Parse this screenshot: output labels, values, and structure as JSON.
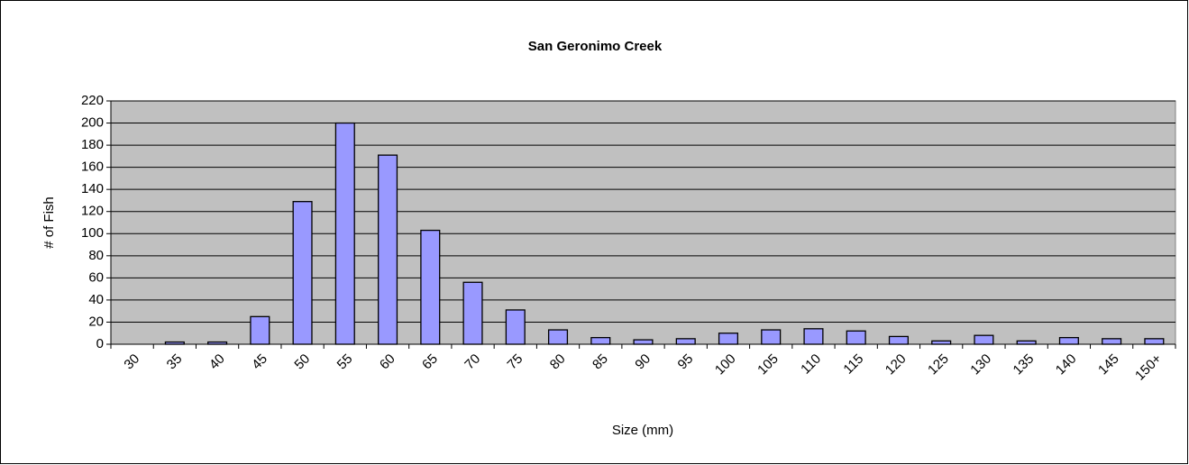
{
  "chart_data": {
    "type": "bar",
    "title": "San Geronimo Creek",
    "x_label": "Size (mm)",
    "y_label": "# of Fish",
    "categories": [
      "30",
      "35",
      "40",
      "45",
      "50",
      "55",
      "60",
      "65",
      "70",
      "75",
      "80",
      "85",
      "90",
      "95",
      "100",
      "105",
      "110",
      "115",
      "120",
      "125",
      "130",
      "135",
      "140",
      "145",
      "150+"
    ],
    "values": [
      0,
      2,
      2,
      25,
      129,
      200,
      171,
      103,
      56,
      31,
      13,
      6,
      4,
      5,
      10,
      13,
      14,
      12,
      7,
      3,
      8,
      3,
      6,
      5,
      5
    ],
    "color": "#9999ff",
    "ylim": [
      0,
      220
    ],
    "yticks": [
      0,
      20,
      40,
      60,
      80,
      100,
      120,
      140,
      160,
      180,
      200,
      220
    ],
    "grid": true
  }
}
